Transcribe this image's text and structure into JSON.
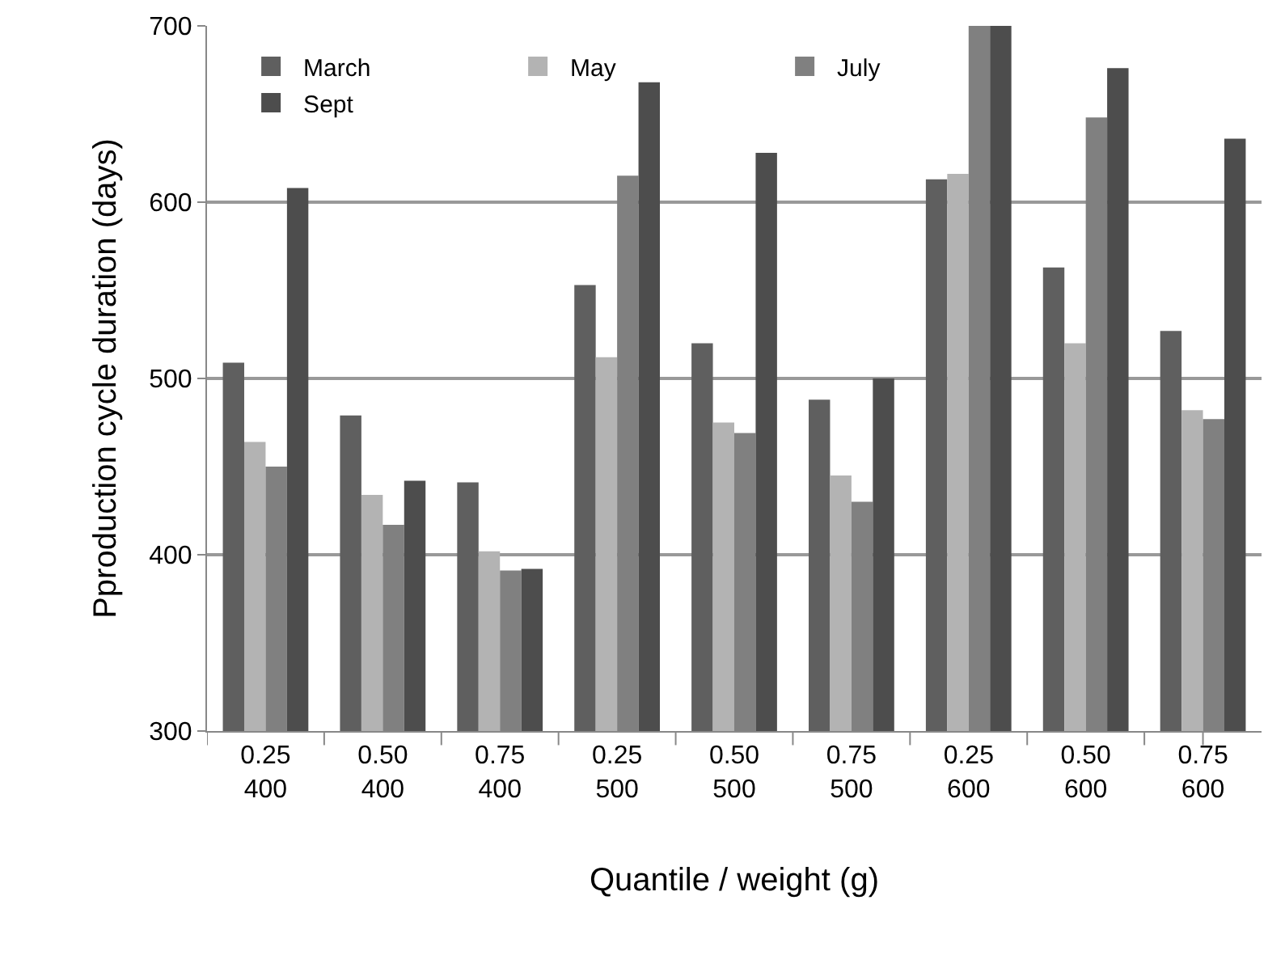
{
  "chart_data": {
    "type": "bar",
    "xlabel": "Quantile / weight (g)",
    "ylabel": "Pproduction cycle duration (days)",
    "categories": [
      "0.25\n400",
      "0.50\n400",
      "0.75\n400",
      "0.25\n500",
      "0.50\n500",
      "0.75\n500",
      "0.25\n600",
      "0.50\n600",
      "0.75\n600"
    ],
    "series": [
      {
        "name": "March",
        "color": "#5f5f5f",
        "values": [
          509,
          479,
          441,
          553,
          520,
          488,
          613,
          563,
          527
        ]
      },
      {
        "name": "May",
        "color": "#b3b3b3",
        "values": [
          464,
          434,
          402,
          512,
          475,
          445,
          616,
          520,
          482
        ]
      },
      {
        "name": "July",
        "color": "#808080",
        "values": [
          450,
          417,
          391,
          615,
          469,
          430,
          700,
          648,
          477
        ]
      },
      {
        "name": "Sept",
        "color": "#4d4d4d",
        "values": [
          608,
          442,
          392,
          668,
          628,
          500,
          700,
          676,
          636
        ]
      }
    ],
    "ylim": [
      300,
      700
    ],
    "yticks": [
      300,
      400,
      500,
      600,
      700
    ],
    "grid": "y",
    "legend": "top left"
  }
}
